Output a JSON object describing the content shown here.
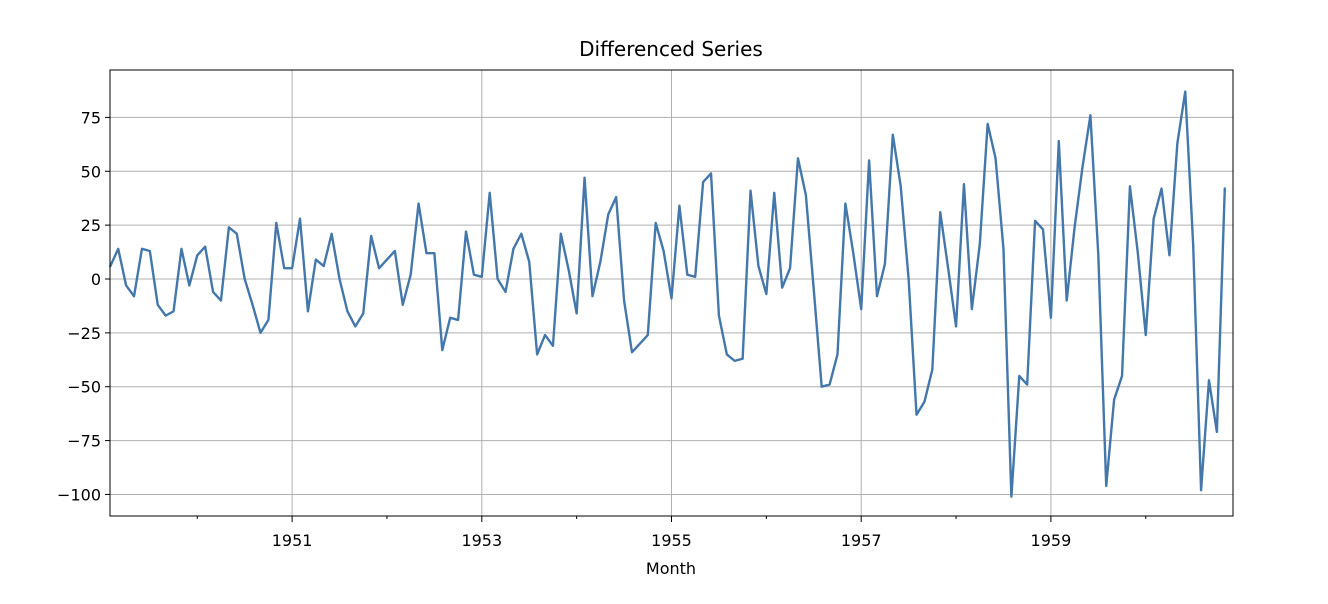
{
  "chart_data": {
    "type": "line",
    "title": "Differenced Series",
    "xlabel": "Month",
    "ylabel": "",
    "grid": true,
    "line_color": "#4477aa",
    "x_start": "1949-02",
    "x_end": "1960-12",
    "xlim": [
      1949.08,
      1960.92
    ],
    "ylim": [
      -110,
      97
    ],
    "x_ticks": [
      {
        "value": 1951.0,
        "label": "1951"
      },
      {
        "value": 1953.0,
        "label": "1953"
      },
      {
        "value": 1955.0,
        "label": "1955"
      },
      {
        "value": 1957.0,
        "label": "1957"
      },
      {
        "value": 1959.0,
        "label": "1959"
      }
    ],
    "x_minor_ticks": [
      1950.0,
      1952.0,
      1954.0,
      1956.0,
      1958.0,
      1960.0
    ],
    "y_ticks": [
      {
        "value": 75,
        "label": "75"
      },
      {
        "value": 50,
        "label": "50"
      },
      {
        "value": 25,
        "label": "25"
      },
      {
        "value": 0,
        "label": "0"
      },
      {
        "value": -25,
        "label": "−25"
      },
      {
        "value": -50,
        "label": "−50"
      },
      {
        "value": -75,
        "label": "−75"
      },
      {
        "value": -100,
        "label": "−100"
      }
    ],
    "series": [
      {
        "name": "Differenced Series",
        "values": [
          6,
          14,
          -3,
          -8,
          14,
          13,
          -12,
          -17,
          -15,
          14,
          -3,
          11,
          15,
          -6,
          -10,
          24,
          21,
          0,
          -12,
          -25,
          -19,
          26,
          5,
          5,
          28,
          -15,
          9,
          6,
          21,
          0,
          -15,
          -22,
          -16,
          20,
          5,
          9,
          13,
          -12,
          2,
          35,
          12,
          12,
          -33,
          -18,
          -19,
          22,
          2,
          1,
          40,
          0,
          -6,
          14,
          21,
          8,
          -35,
          -26,
          -31,
          21,
          4,
          -16,
          47,
          -8,
          8,
          30,
          38,
          -10,
          -34,
          -30,
          -26,
          26,
          13,
          -9,
          34,
          2,
          1,
          45,
          49,
          -17,
          -35,
          -38,
          -37,
          41,
          6,
          -7,
          40,
          -4,
          5,
          56,
          39,
          -5,
          -50,
          -49,
          -35,
          35,
          12,
          -14,
          55,
          -8,
          7,
          67,
          43,
          0,
          -63,
          -57,
          -42,
          31,
          5,
          -22,
          44,
          -14,
          16,
          72,
          56,
          14,
          -101,
          -45,
          -49,
          27,
          23,
          -18,
          64,
          -10,
          24,
          52,
          76,
          11,
          -96,
          -56,
          -45,
          43,
          12,
          -26,
          28,
          42,
          11,
          63,
          87,
          16,
          -98,
          -47,
          -71,
          42
        ]
      }
    ]
  }
}
